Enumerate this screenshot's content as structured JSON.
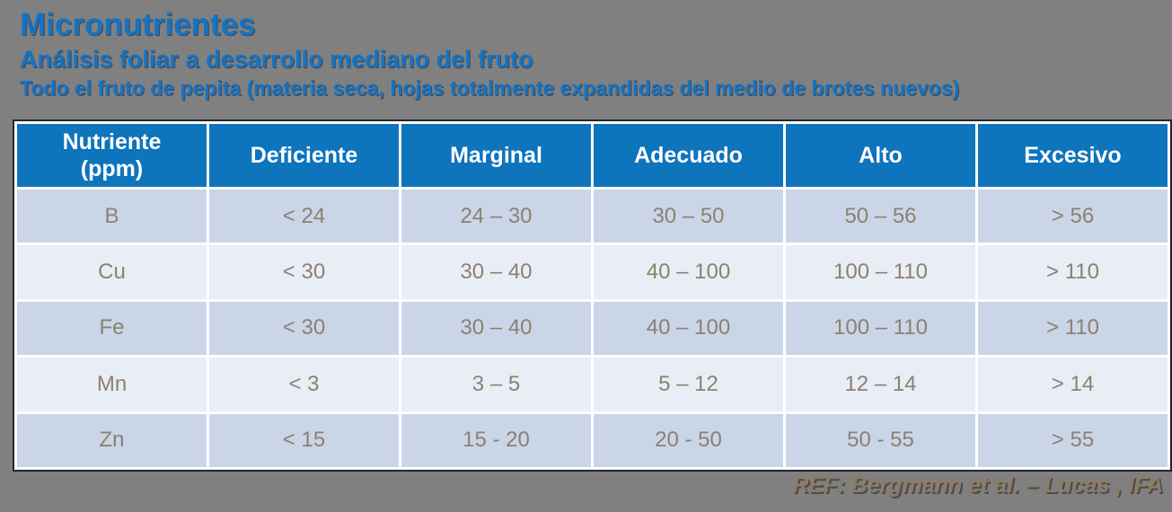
{
  "slide": {
    "title": "Micronutrientes",
    "subtitle": "Análisis foliar a desarrollo mediano del fruto",
    "subtitle2": "Todo el fruto de pepita (materia seca, hojas totalmente expandidas del medio de brotes nuevos)",
    "reference": "REF: Bergmann et al. – Lucas , IFA"
  },
  "table": {
    "headers": [
      "Nutriente\n(ppm)",
      "Deficiente",
      "Marginal",
      "Adecuado",
      "Alto",
      "Excesivo"
    ],
    "rows": [
      [
        "B",
        "< 24",
        "24 – 30",
        "30 – 50",
        "50 – 56",
        "> 56"
      ],
      [
        "Cu",
        "< 30",
        "30 – 40",
        "40 – 100",
        "100 – 110",
        "> 110"
      ],
      [
        "Fe",
        "< 30",
        "30 – 40",
        "40 – 100",
        "100 – 110",
        "> 110"
      ],
      [
        "Mn",
        "< 3",
        "3 – 5",
        "5 – 12",
        "12 – 14",
        "> 14"
      ],
      [
        "Zn",
        "< 15",
        "15 - 20",
        "20 - 50",
        "50 - 55",
        "> 55"
      ]
    ]
  },
  "colors": {
    "background": "#808080",
    "title_blue": "#1474C4",
    "header_blue": "#0E74BC",
    "row_odd": "#CAD5E8",
    "row_even": "#E9EDF5",
    "cell_text": "#8C8170",
    "reference_text": "#8D7C64"
  }
}
